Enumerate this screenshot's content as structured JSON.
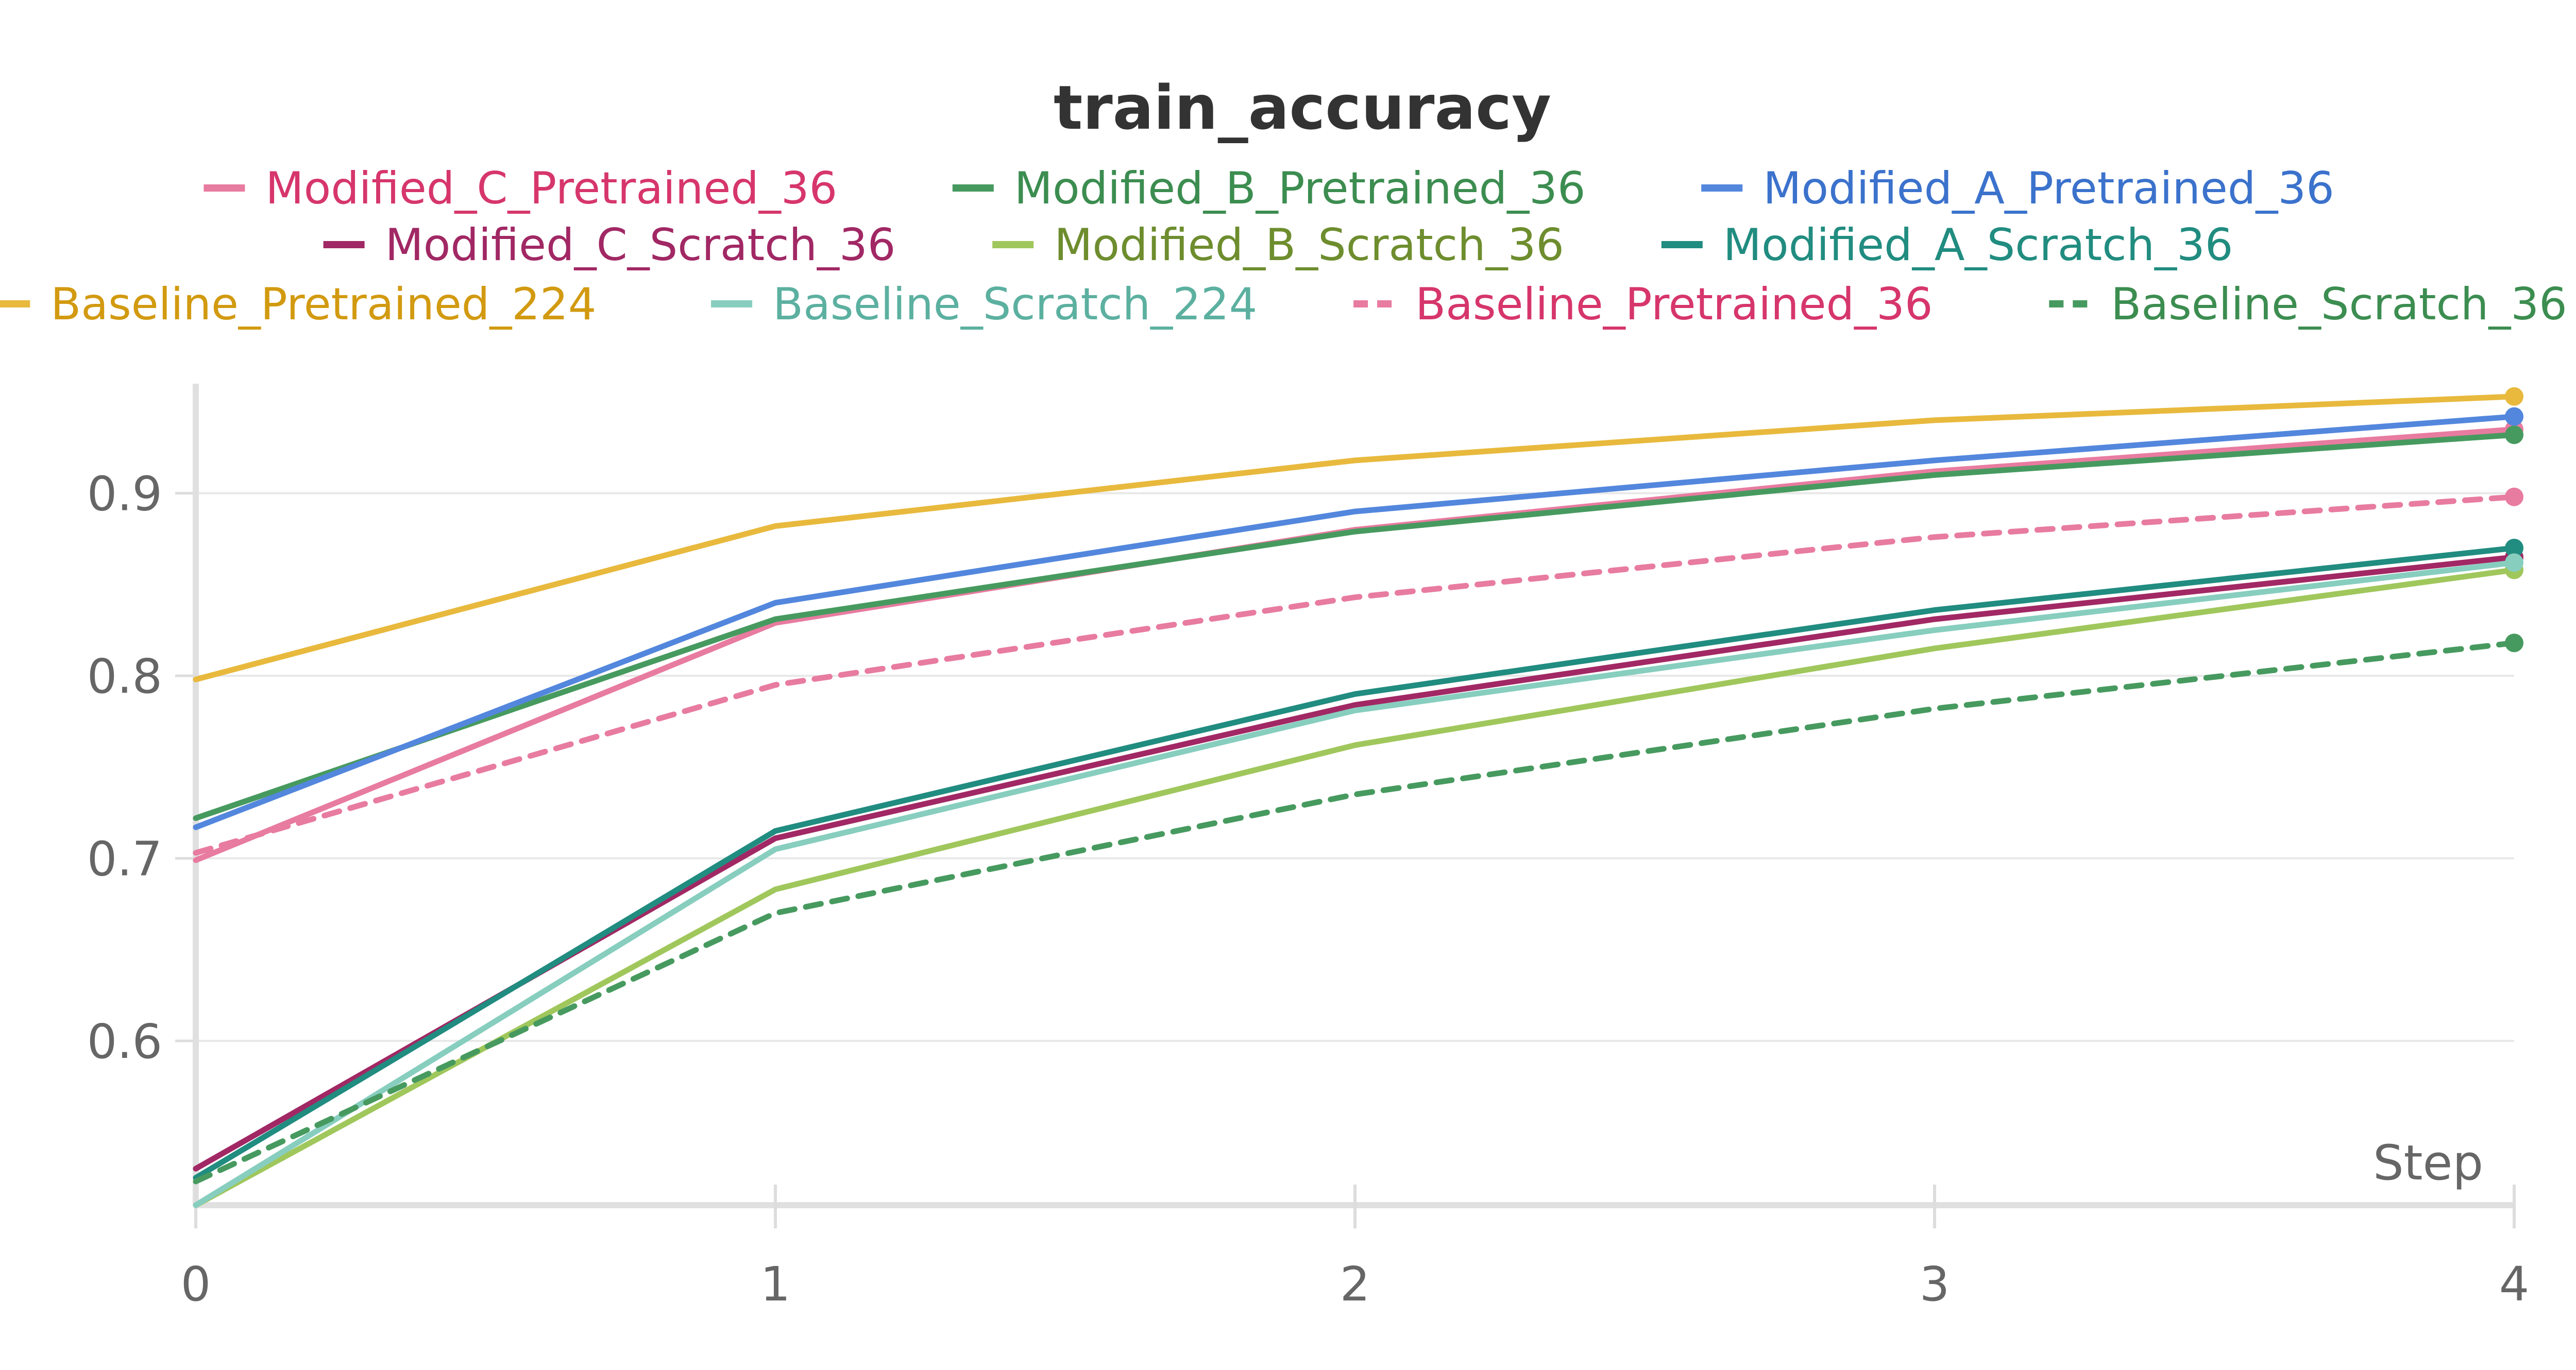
{
  "chart_data": {
    "type": "line",
    "title": "train_accuracy",
    "xlabel": "Step",
    "ylabel": "",
    "x": [
      0,
      1,
      2,
      3,
      4
    ],
    "x_ticks": [
      "0",
      "1",
      "2",
      "3",
      "4"
    ],
    "y_ticks": [
      "0.6",
      "0.7",
      "0.8",
      "0.9"
    ],
    "xlim": [
      0,
      4
    ],
    "ylim": [
      0.51,
      0.96
    ],
    "grid": true,
    "legend_position": "top",
    "series": [
      {
        "name": "Modified_C_Pretrained_36",
        "values": [
          0.699,
          0.829,
          0.88,
          0.912,
          0.935
        ],
        "color": "#E87BA0",
        "label_color": "#D6366B",
        "dashed": false
      },
      {
        "name": "Modified_B_Pretrained_36",
        "values": [
          0.722,
          0.831,
          0.879,
          0.91,
          0.932
        ],
        "color": "#479A5F",
        "label_color": "#3C8D50",
        "dashed": false
      },
      {
        "name": "Modified_A_Pretrained_36",
        "values": [
          0.717,
          0.84,
          0.89,
          0.918,
          0.942
        ],
        "color": "#5387DD",
        "label_color": "#3B72CC",
        "dashed": false
      },
      {
        "name": "Modified_C_Scratch_36",
        "values": [
          0.53,
          0.711,
          0.784,
          0.831,
          0.865
        ],
        "color": "#A12864",
        "label_color": "#A12864",
        "dashed": false
      },
      {
        "name": "Modified_B_Scratch_36",
        "values": [
          0.51,
          0.683,
          0.762,
          0.815,
          0.858
        ],
        "color": "#A0C75C",
        "label_color": "#6E8D2E",
        "dashed": false
      },
      {
        "name": "Modified_A_Scratch_36",
        "values": [
          0.525,
          0.715,
          0.79,
          0.836,
          0.87
        ],
        "color": "#218C80",
        "label_color": "#218C80",
        "dashed": false
      },
      {
        "name": "Baseline_Pretrained_224",
        "values": [
          0.798,
          0.882,
          0.918,
          0.94,
          0.953
        ],
        "color": "#E8B93D",
        "label_color": "#D29A10",
        "dashed": false
      },
      {
        "name": "Baseline_Scratch_224",
        "values": [
          0.51,
          0.705,
          0.781,
          0.825,
          0.862
        ],
        "color": "#87CEBF",
        "label_color": "#5CB0A0",
        "dashed": false
      },
      {
        "name": "Baseline_Pretrained_36",
        "values": [
          0.703,
          0.795,
          0.843,
          0.876,
          0.898
        ],
        "color": "#E87BA0",
        "label_color": "#D6366B",
        "dashed": true
      },
      {
        "name": "Baseline_Scratch_36",
        "values": [
          0.523,
          0.67,
          0.735,
          0.782,
          0.818
        ],
        "color": "#479A5F",
        "label_color": "#3C8D50",
        "dashed": true
      }
    ]
  }
}
